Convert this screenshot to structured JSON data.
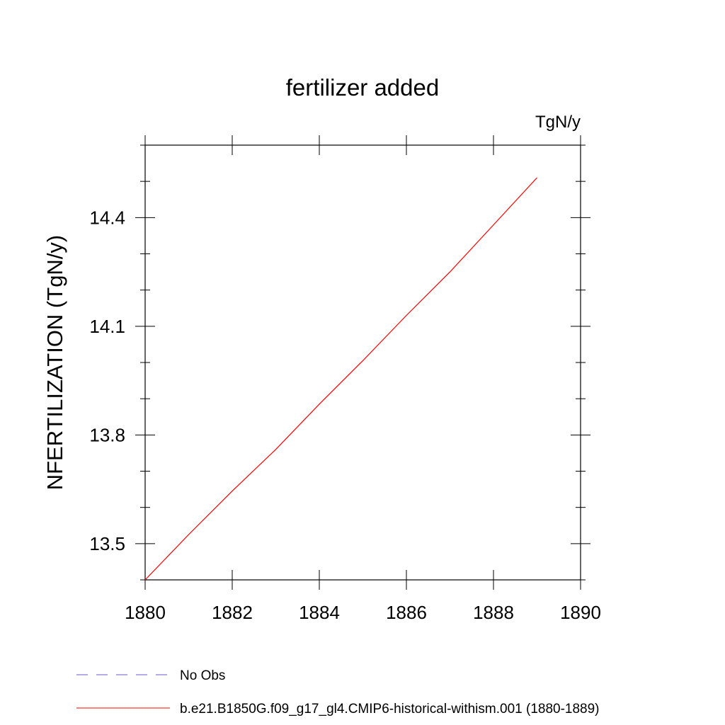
{
  "chart_data": {
    "type": "line",
    "title": "fertilizer added",
    "units": "TgN/y",
    "ylabel": "NFERTILIZATION  (TgN/y)",
    "xlabel": "",
    "xlim": [
      1880,
      1890
    ],
    "ylim": [
      13.4,
      14.6
    ],
    "x_ticks": [
      1880,
      1882,
      1884,
      1886,
      1888,
      1890
    ],
    "x_tick_labels": [
      "1880",
      "1882",
      "1884",
      "1886",
      "1888",
      "1890"
    ],
    "y_ticks": [
      13.5,
      13.8,
      14.1,
      14.4
    ],
    "y_tick_labels": [
      "13.5",
      "13.8",
      "14.1",
      "14.4"
    ],
    "grid": false,
    "legend_position": "bottom",
    "series": [
      {
        "name": "b.e21.B1850G.f09_g17_gl4.CMIP6-historical-withism.001 (1880-1889)",
        "color": "#ff0000",
        "style": "solid",
        "x": [
          1880,
          1881,
          1882,
          1883,
          1884,
          1885,
          1886,
          1887,
          1888,
          1889
        ],
        "values": [
          13.4,
          13.525,
          13.645,
          13.76,
          13.885,
          14.005,
          14.13,
          14.25,
          14.38,
          14.51
        ]
      },
      {
        "name": "No Obs",
        "color": "#6a5acd",
        "style": "dashed",
        "x": [],
        "values": []
      }
    ]
  }
}
